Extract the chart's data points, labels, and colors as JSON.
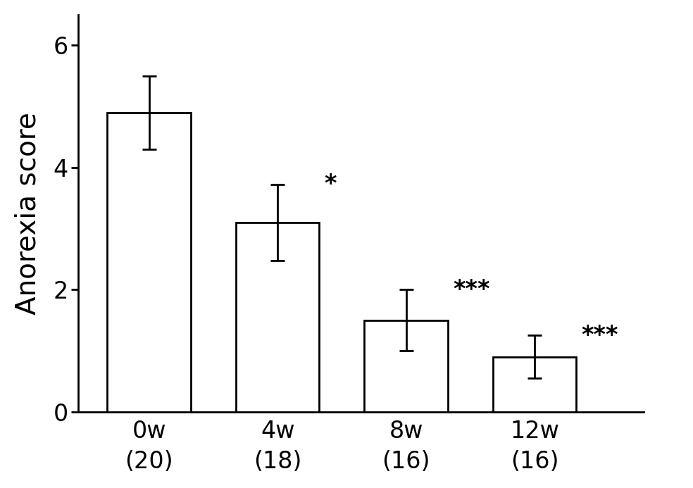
{
  "categories": [
    "0w\n(20)",
    "4w\n(18)",
    "8w\n(16)",
    "12w\n(16)"
  ],
  "values": [
    4.9,
    3.1,
    1.5,
    0.9
  ],
  "errors": [
    0.6,
    0.62,
    0.5,
    0.35
  ],
  "significance": [
    "",
    "*",
    "***",
    "***"
  ],
  "bar_color": "#ffffff",
  "bar_edgecolor": "#000000",
  "ylabel": "Anorexia score",
  "ylim": [
    0,
    6.5
  ],
  "yticks": [
    0,
    2,
    4,
    6
  ],
  "bar_width": 0.65,
  "sig_fontsize": 24,
  "ylabel_fontsize": 28,
  "tick_fontsize": 24,
  "background_color": "#ffffff",
  "linewidth": 2.0,
  "capsize": 7,
  "error_linewidth": 2.0,
  "x_positions": [
    0,
    1,
    2,
    3
  ],
  "xlim": [
    -0.55,
    3.85
  ]
}
